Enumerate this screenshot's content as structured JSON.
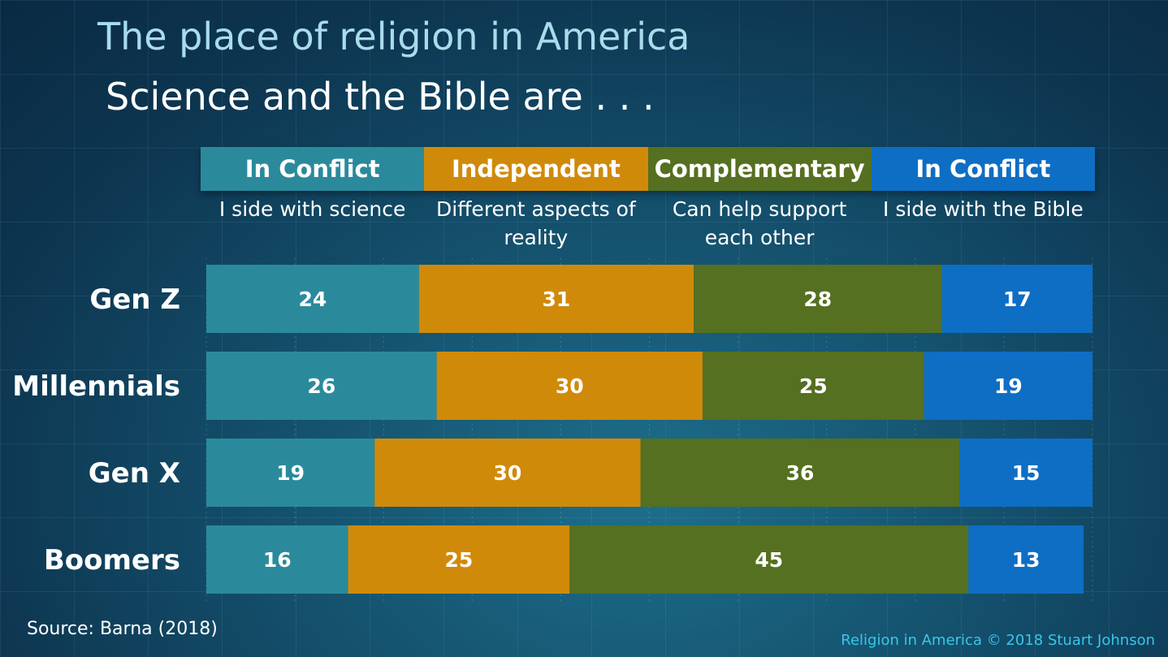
{
  "title": "The place of religion in America",
  "subtitle": "Science and the Bible are . . .",
  "categories_header": [
    {
      "label": "In Conflict",
      "description": "I side with science",
      "color": "#2a8a9c"
    },
    {
      "label": "Independent",
      "description": "Different aspects of reality",
      "color": "#d08a0a"
    },
    {
      "label": "Complementary",
      "description": "Can help support each other",
      "color": "#557020"
    },
    {
      "label": "In Conflict",
      "description": "I side with the Bible",
      "color": "#0e6ec4"
    }
  ],
  "chart_data": {
    "type": "bar",
    "orientation": "horizontal",
    "stacked": true,
    "categories": [
      "Gen Z",
      "Millennials",
      "Gen X",
      "Boomers"
    ],
    "series": [
      {
        "name": "In Conflict",
        "values": [
          24,
          26,
          19,
          16
        ],
        "color": "#2a8a9c"
      },
      {
        "name": "Independent",
        "values": [
          31,
          30,
          30,
          25
        ],
        "color": "#d08a0a"
      },
      {
        "name": "Complementary",
        "values": [
          28,
          25,
          36,
          45
        ],
        "color": "#557020"
      },
      {
        "name": "In Conflict",
        "values": [
          17,
          19,
          15,
          13
        ],
        "color": "#0e6ec4"
      }
    ],
    "xlim": [
      0,
      100
    ],
    "grid": true
  },
  "footer": {
    "source": "Source: Barna (2018)",
    "copyright": "Religion in America © 2018 Stuart Johnson"
  }
}
